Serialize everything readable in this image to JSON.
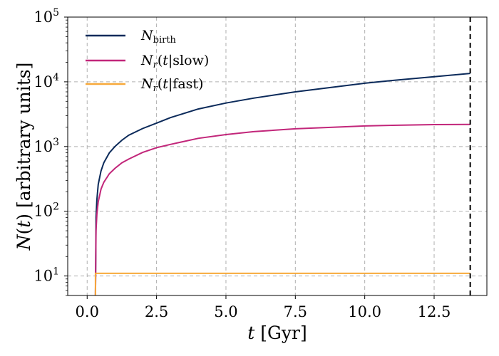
{
  "chart_data": {
    "type": "line",
    "title": "",
    "xlabel": "t [Gyr]",
    "ylabel": "N(t) [arbitrary units]",
    "xlim": [
      -0.7,
      14.4
    ],
    "ylim": [
      5,
      100000
    ],
    "yscale": "log",
    "grid": true,
    "legend_position": "top-left",
    "x_ticks": [
      0.0,
      2.5,
      5.0,
      7.5,
      10.0,
      12.5
    ],
    "x_tick_labels": [
      "0.0",
      "2.5",
      "5.0",
      "7.5",
      "10.0",
      "12.5"
    ],
    "y_ticks": [
      10,
      100,
      1000,
      10000,
      100000
    ],
    "y_tick_labels": [
      "10^1",
      "10^2",
      "10^3",
      "10^4",
      "10^5"
    ],
    "vline": {
      "x": 13.8,
      "style": "dashed",
      "color": "#000000"
    },
    "series": [
      {
        "name": "N_birth",
        "color": "#0b2a5a",
        "x": [
          0.3,
          0.32,
          0.35,
          0.4,
          0.5,
          0.6,
          0.8,
          1.0,
          1.25,
          1.5,
          2.0,
          2.5,
          3.0,
          4.0,
          5.0,
          6.0,
          7.5,
          9.0,
          10.0,
          11.0,
          12.5,
          13.8
        ],
        "y": [
          5,
          80,
          150,
          260,
          420,
          560,
          800,
          1000,
          1250,
          1500,
          1900,
          2300,
          2800,
          3800,
          4700,
          5600,
          7000,
          8400,
          9500,
          10500,
          12000,
          13500
        ]
      },
      {
        "name": "N_r(t|slow)",
        "color": "#c2267a",
        "x": [
          0.3,
          0.32,
          0.35,
          0.4,
          0.5,
          0.6,
          0.8,
          1.0,
          1.25,
          1.5,
          2.0,
          2.5,
          3.0,
          4.0,
          5.0,
          6.0,
          7.5,
          9.0,
          10.0,
          11.0,
          12.5,
          13.8
        ],
        "y": [
          5,
          50,
          90,
          140,
          220,
          280,
          380,
          460,
          560,
          640,
          810,
          960,
          1080,
          1340,
          1530,
          1700,
          1880,
          2000,
          2080,
          2130,
          2180,
          2200
        ]
      },
      {
        "name": "N_r(t|fast)",
        "color": "#f7a93a",
        "x": [
          0.3,
          0.3,
          13.8
        ],
        "y": [
          5,
          11,
          11
        ]
      }
    ]
  }
}
